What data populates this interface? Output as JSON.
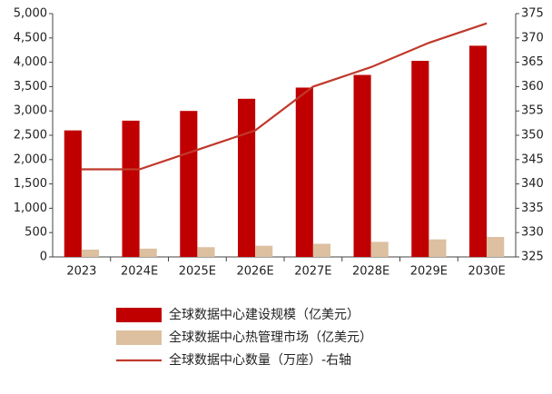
{
  "chart_data": {
    "type": "bar",
    "categories": [
      "2023",
      "2024E",
      "2025E",
      "2026E",
      "2027E",
      "2028E",
      "2029E",
      "2030E"
    ],
    "series": [
      {
        "name": "全球数据中心建设规模（亿美元）",
        "color": "#c00000",
        "type": "bar",
        "values": [
          2600,
          2800,
          3000,
          3250,
          3480,
          3740,
          4030,
          4340
        ]
      },
      {
        "name": "全球数据中心热管理市场（亿美元）",
        "color": "#dcc0a0",
        "type": "bar",
        "values": [
          150,
          170,
          200,
          230,
          270,
          310,
          360,
          410
        ]
      },
      {
        "name": "全球数据中心数量（万座）-右轴",
        "color": "#c0392b",
        "type": "line",
        "axis": "y2",
        "values": [
          343,
          343,
          347,
          351,
          360,
          364,
          369,
          373
        ]
      }
    ],
    "ylim": [
      0,
      5000
    ],
    "yticks": [
      0,
      500,
      {
        "value": 1000,
        "label": "1,000"
      },
      {
        "value": 1500,
        "label": "1,500"
      },
      {
        "value": 2000,
        "label": "2,000"
      },
      {
        "value": 2500,
        "label": "2,500"
      },
      {
        "value": 3000,
        "label": "3,000"
      },
      {
        "value": 3500,
        "label": "3,500"
      },
      {
        "value": 4000,
        "label": "4,000"
      },
      {
        "value": 4500,
        "label": "4,500"
      },
      {
        "value": 5000,
        "label": "5,000"
      }
    ],
    "y2lim": [
      325,
      375
    ],
    "y2ticks": [
      325,
      330,
      335,
      340,
      345,
      350,
      355,
      360,
      365,
      370,
      375
    ],
    "legend": "bottom"
  }
}
